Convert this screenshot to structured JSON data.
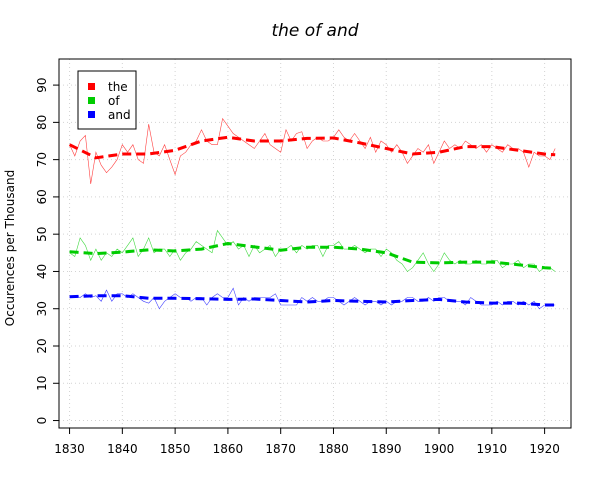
{
  "chart_data": {
    "type": "line",
    "title": "the of and",
    "xlabel": "",
    "ylabel": "Occurences per Thousand",
    "xlim": [
      1828,
      1925
    ],
    "ylim": [
      -2,
      97
    ],
    "x_ticks": [
      1830,
      1840,
      1850,
      1860,
      1870,
      1880,
      1890,
      1900,
      1910,
      1920
    ],
    "y_ticks": [
      0,
      10,
      20,
      30,
      40,
      50,
      60,
      70,
      80,
      90
    ],
    "grid": true,
    "legend_position": "top-left",
    "series": [
      {
        "name": "the",
        "color": "#ff0000",
        "raw_x": [
          1830,
          1831,
          1832,
          1833,
          1834,
          1835,
          1836,
          1837,
          1838,
          1839,
          1840,
          1841,
          1842,
          1843,
          1844,
          1845,
          1846,
          1847,
          1848,
          1849,
          1850,
          1851,
          1852,
          1853,
          1854,
          1855,
          1856,
          1857,
          1858,
          1859,
          1860,
          1861,
          1862,
          1863,
          1864,
          1865,
          1866,
          1867,
          1868,
          1869,
          1870,
          1871,
          1872,
          1873,
          1874,
          1875,
          1876,
          1877,
          1878,
          1879,
          1880,
          1881,
          1882,
          1883,
          1884,
          1885,
          1886,
          1887,
          1888,
          1889,
          1890,
          1891,
          1892,
          1893,
          1894,
          1895,
          1896,
          1897,
          1898,
          1899,
          1900,
          1901,
          1902,
          1903,
          1904,
          1905,
          1906,
          1907,
          1908,
          1909,
          1910,
          1911,
          1912,
          1913,
          1914,
          1915,
          1916,
          1917,
          1918,
          1919,
          1920,
          1921,
          1922
        ],
        "raw_y": [
          74,
          71,
          75,
          76.5,
          63.5,
          72,
          68.5,
          66.5,
          68,
          70,
          74,
          72,
          74,
          70,
          69,
          79.5,
          72,
          71,
          74,
          70,
          66,
          71,
          72,
          74,
          75,
          78,
          75,
          74,
          74,
          81,
          79,
          77,
          76,
          75,
          74,
          73,
          75,
          77,
          74,
          73,
          72,
          78,
          75,
          77,
          77.5,
          73,
          75,
          76,
          75,
          75,
          76,
          78,
          76,
          75,
          77,
          75,
          73,
          76,
          72,
          75,
          74,
          72,
          74,
          72,
          69,
          71,
          73,
          72,
          74,
          69,
          72,
          75,
          73,
          74,
          73,
          75,
          74,
          73,
          74,
          72,
          74,
          73,
          72,
          74,
          73,
          73,
          72,
          68,
          72,
          71,
          71,
          70,
          73
        ],
        "smooth_x": [
          1830,
          1835,
          1840,
          1845,
          1850,
          1855,
          1860,
          1865,
          1870,
          1875,
          1880,
          1885,
          1890,
          1895,
          1900,
          1905,
          1910,
          1915,
          1920,
          1922
        ],
        "smooth_y": [
          74,
          70.5,
          71.5,
          71.5,
          72.5,
          75,
          76,
          75,
          75,
          75.7,
          75.8,
          74.5,
          73,
          71.5,
          72,
          73.5,
          73.5,
          72.5,
          71.5,
          71.3
        ]
      },
      {
        "name": "of",
        "color": "#00cc00",
        "raw_x": [
          1830,
          1831,
          1832,
          1833,
          1834,
          1835,
          1836,
          1837,
          1838,
          1839,
          1840,
          1841,
          1842,
          1843,
          1844,
          1845,
          1846,
          1847,
          1848,
          1849,
          1850,
          1851,
          1852,
          1853,
          1854,
          1855,
          1856,
          1857,
          1858,
          1859,
          1860,
          1861,
          1862,
          1863,
          1864,
          1865,
          1866,
          1867,
          1868,
          1869,
          1870,
          1871,
          1872,
          1873,
          1874,
          1875,
          1876,
          1877,
          1878,
          1879,
          1880,
          1881,
          1882,
          1883,
          1884,
          1885,
          1886,
          1887,
          1888,
          1889,
          1890,
          1891,
          1892,
          1893,
          1894,
          1895,
          1896,
          1897,
          1898,
          1899,
          1900,
          1901,
          1902,
          1903,
          1904,
          1905,
          1906,
          1907,
          1908,
          1909,
          1910,
          1911,
          1912,
          1913,
          1914,
          1915,
          1916,
          1917,
          1918,
          1919,
          1920,
          1921,
          1922
        ],
        "raw_y": [
          45,
          44,
          49,
          47,
          43,
          46,
          43,
          45,
          44,
          46,
          45,
          47,
          49,
          44,
          46,
          49,
          45,
          46,
          46,
          44,
          46,
          43,
          45,
          46,
          48,
          47,
          46,
          45,
          51,
          49,
          47,
          48,
          46,
          47,
          44,
          47,
          45,
          46,
          47,
          44,
          46,
          46,
          47,
          45,
          47,
          46,
          47,
          47,
          44,
          47,
          47,
          48,
          46,
          46,
          47,
          46,
          45,
          46,
          46,
          44,
          46,
          45,
          43,
          42,
          40,
          41,
          43,
          45,
          42,
          40,
          42,
          45,
          43,
          42,
          43,
          42,
          42,
          43,
          42,
          42,
          43,
          43,
          41,
          42,
          42,
          43,
          41,
          42,
          42,
          40,
          41,
          41,
          40
        ],
        "smooth_x": [
          1830,
          1835,
          1840,
          1845,
          1850,
          1855,
          1860,
          1865,
          1870,
          1875,
          1880,
          1885,
          1890,
          1895,
          1900,
          1905,
          1910,
          1915,
          1920,
          1922
        ],
        "smooth_y": [
          45.3,
          44.8,
          45.2,
          45.8,
          45.5,
          46,
          47.5,
          46.6,
          45.7,
          46.5,
          46.5,
          46,
          45,
          42.5,
          42.3,
          42.5,
          42.5,
          41.8,
          41,
          40.8
        ]
      },
      {
        "name": "and",
        "color": "#0000ff",
        "raw_x": [
          1830,
          1831,
          1832,
          1833,
          1834,
          1835,
          1836,
          1837,
          1838,
          1839,
          1840,
          1841,
          1842,
          1843,
          1844,
          1845,
          1846,
          1847,
          1848,
          1849,
          1850,
          1851,
          1852,
          1853,
          1854,
          1855,
          1856,
          1857,
          1858,
          1859,
          1860,
          1861,
          1862,
          1863,
          1864,
          1865,
          1866,
          1867,
          1868,
          1869,
          1870,
          1871,
          1872,
          1873,
          1874,
          1875,
          1876,
          1877,
          1878,
          1879,
          1880,
          1881,
          1882,
          1883,
          1884,
          1885,
          1886,
          1887,
          1888,
          1889,
          1890,
          1891,
          1892,
          1893,
          1894,
          1895,
          1896,
          1897,
          1898,
          1899,
          1900,
          1901,
          1902,
          1903,
          1904,
          1905,
          1906,
          1907,
          1908,
          1909,
          1910,
          1911,
          1912,
          1913,
          1914,
          1915,
          1916,
          1917,
          1918,
          1919,
          1920,
          1921,
          1922
        ],
        "raw_y": [
          33,
          33.5,
          33,
          34,
          33,
          33.5,
          32,
          35,
          32,
          34,
          34,
          33,
          34,
          33,
          32,
          31.5,
          33,
          30,
          32,
          33,
          34,
          33,
          33,
          32,
          33,
          33,
          31,
          33,
          34,
          33,
          33,
          35.5,
          31,
          33,
          32,
          33,
          33,
          33,
          33,
          34,
          31,
          31,
          31,
          31,
          33,
          32,
          33,
          32,
          32,
          33,
          33,
          32,
          31,
          32,
          33,
          32,
          31,
          32,
          32,
          31,
          32,
          31,
          32,
          32,
          33,
          33,
          32,
          32,
          33,
          32,
          33,
          33,
          32,
          32,
          32,
          31,
          33,
          32,
          31,
          31,
          31,
          32,
          31,
          32,
          32,
          31,
          32,
          31,
          32,
          30,
          31,
          31,
          31
        ],
        "smooth_x": [
          1830,
          1835,
          1840,
          1845,
          1850,
          1855,
          1860,
          1865,
          1870,
          1875,
          1880,
          1885,
          1890,
          1895,
          1900,
          1905,
          1910,
          1915,
          1920,
          1922
        ],
        "smooth_y": [
          33.2,
          33.5,
          33.5,
          32.8,
          32.8,
          32.7,
          32.5,
          32.6,
          32.2,
          31.8,
          32.2,
          32,
          31.8,
          32.2,
          32.5,
          31.8,
          31.5,
          31.5,
          31,
          31
        ]
      }
    ]
  }
}
